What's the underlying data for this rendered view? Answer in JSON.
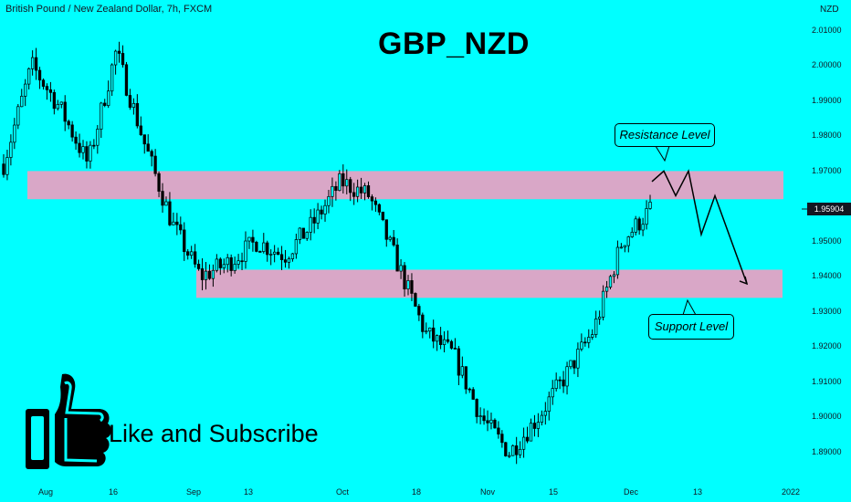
{
  "symbol_info": "British Pound / New Zealand Dollar, 7h, FXCM",
  "currency": "NZD",
  "promo_text": "Like and Subscribe",
  "colors": {
    "background": "#00FFFF",
    "zone": "#D9A7C7",
    "candle": "#000000",
    "text": "#131722"
  },
  "icons": {
    "like": "thumbs-up-icon"
  },
  "chart_data": {
    "type": "candlestick",
    "title": "GBP_NZD",
    "y_axis": {
      "ticks": [
        "2.01000",
        "1.99000",
        "1.98000",
        "1.97000",
        "1.95000",
        "1.94000",
        "1.93000",
        "1.92000",
        "1.91000",
        "1.90000",
        "1.89000"
      ],
      "extra_tick": "2.00000",
      "range": [
        1.885,
        2.013
      ],
      "position": "right"
    },
    "x_axis": {
      "ticks": [
        "Aug",
        "16",
        "Sep",
        "13",
        "Oct",
        "18",
        "Nov",
        "15",
        "Dec",
        "13",
        "2022"
      ]
    },
    "last_price": "1.95904",
    "price_path": [
      [
        "Aug",
        1.972
      ],
      [
        "Aug",
        2.0
      ],
      [
        "Aug",
        1.988
      ],
      [
        "16",
        1.972
      ],
      [
        "16",
        2.004
      ],
      [
        "16",
        1.978
      ],
      [
        "Sep",
        1.955
      ],
      [
        "Sep",
        1.94
      ],
      [
        "13",
        1.944
      ],
      [
        "13",
        1.95
      ],
      [
        "13",
        1.946
      ],
      [
        "Oct",
        1.955
      ],
      [
        "Oct",
        1.967
      ],
      [
        "Oct",
        1.963
      ],
      [
        "18",
        1.944
      ],
      [
        "18",
        1.924
      ],
      [
        "18",
        1.918
      ],
      [
        "Nov",
        1.9
      ],
      [
        "Nov",
        1.89
      ],
      [
        "15",
        1.9
      ],
      [
        "15",
        1.912
      ],
      [
        "15",
        1.925
      ],
      [
        "Dec",
        1.95
      ],
      [
        "Dec",
        1.959
      ]
    ],
    "zones": [
      {
        "label": "Resistance Level",
        "from": 1.962,
        "to": 1.97
      },
      {
        "label": "Support Level",
        "from": 1.934,
        "to": 1.942
      }
    ],
    "projection": [
      1.967,
      1.97,
      1.963,
      1.97,
      1.952,
      1.963,
      1.938
    ],
    "annotations": [
      "Resistance Level",
      "Support Level"
    ],
    "grid": false
  }
}
